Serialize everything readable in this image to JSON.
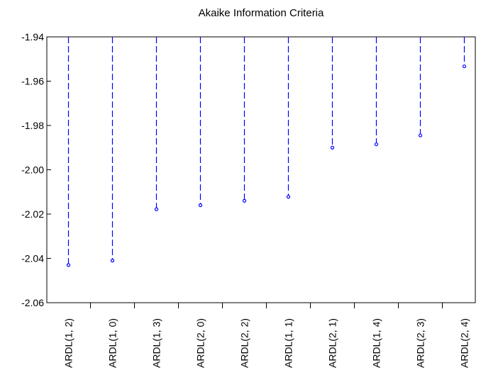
{
  "chart_data": {
    "type": "scatter",
    "style": "dropline",
    "title": "Akaike Information Criteria",
    "xlabel": "",
    "ylabel": "",
    "categories": [
      "ARDL(1, 2)",
      "ARDL(1, 0)",
      "ARDL(1, 3)",
      "ARDL(2, 0)",
      "ARDL(2, 2)",
      "ARDL(1, 1)",
      "ARDL(2, 1)",
      "ARDL(1, 4)",
      "ARDL(2, 3)",
      "ARDL(2, 4)"
    ],
    "values": [
      -2.043,
      -2.041,
      -2.0178,
      -2.016,
      -2.014,
      -2.0122,
      -1.99,
      -1.9885,
      -1.9845,
      -1.9533
    ],
    "ylim": [
      -2.06,
      -1.94
    ],
    "yticks": [
      -1.94,
      -1.96,
      -1.98,
      -2.0,
      -2.02,
      -2.04,
      -2.06
    ],
    "ytick_labels": [
      "-1.94",
      "-1.96",
      "-1.98",
      "-2.00",
      "-2.02",
      "-2.04",
      "-2.06"
    ],
    "grid": false,
    "legend": "none",
    "series_color": "#0000ff",
    "axis_color": "#000000"
  }
}
